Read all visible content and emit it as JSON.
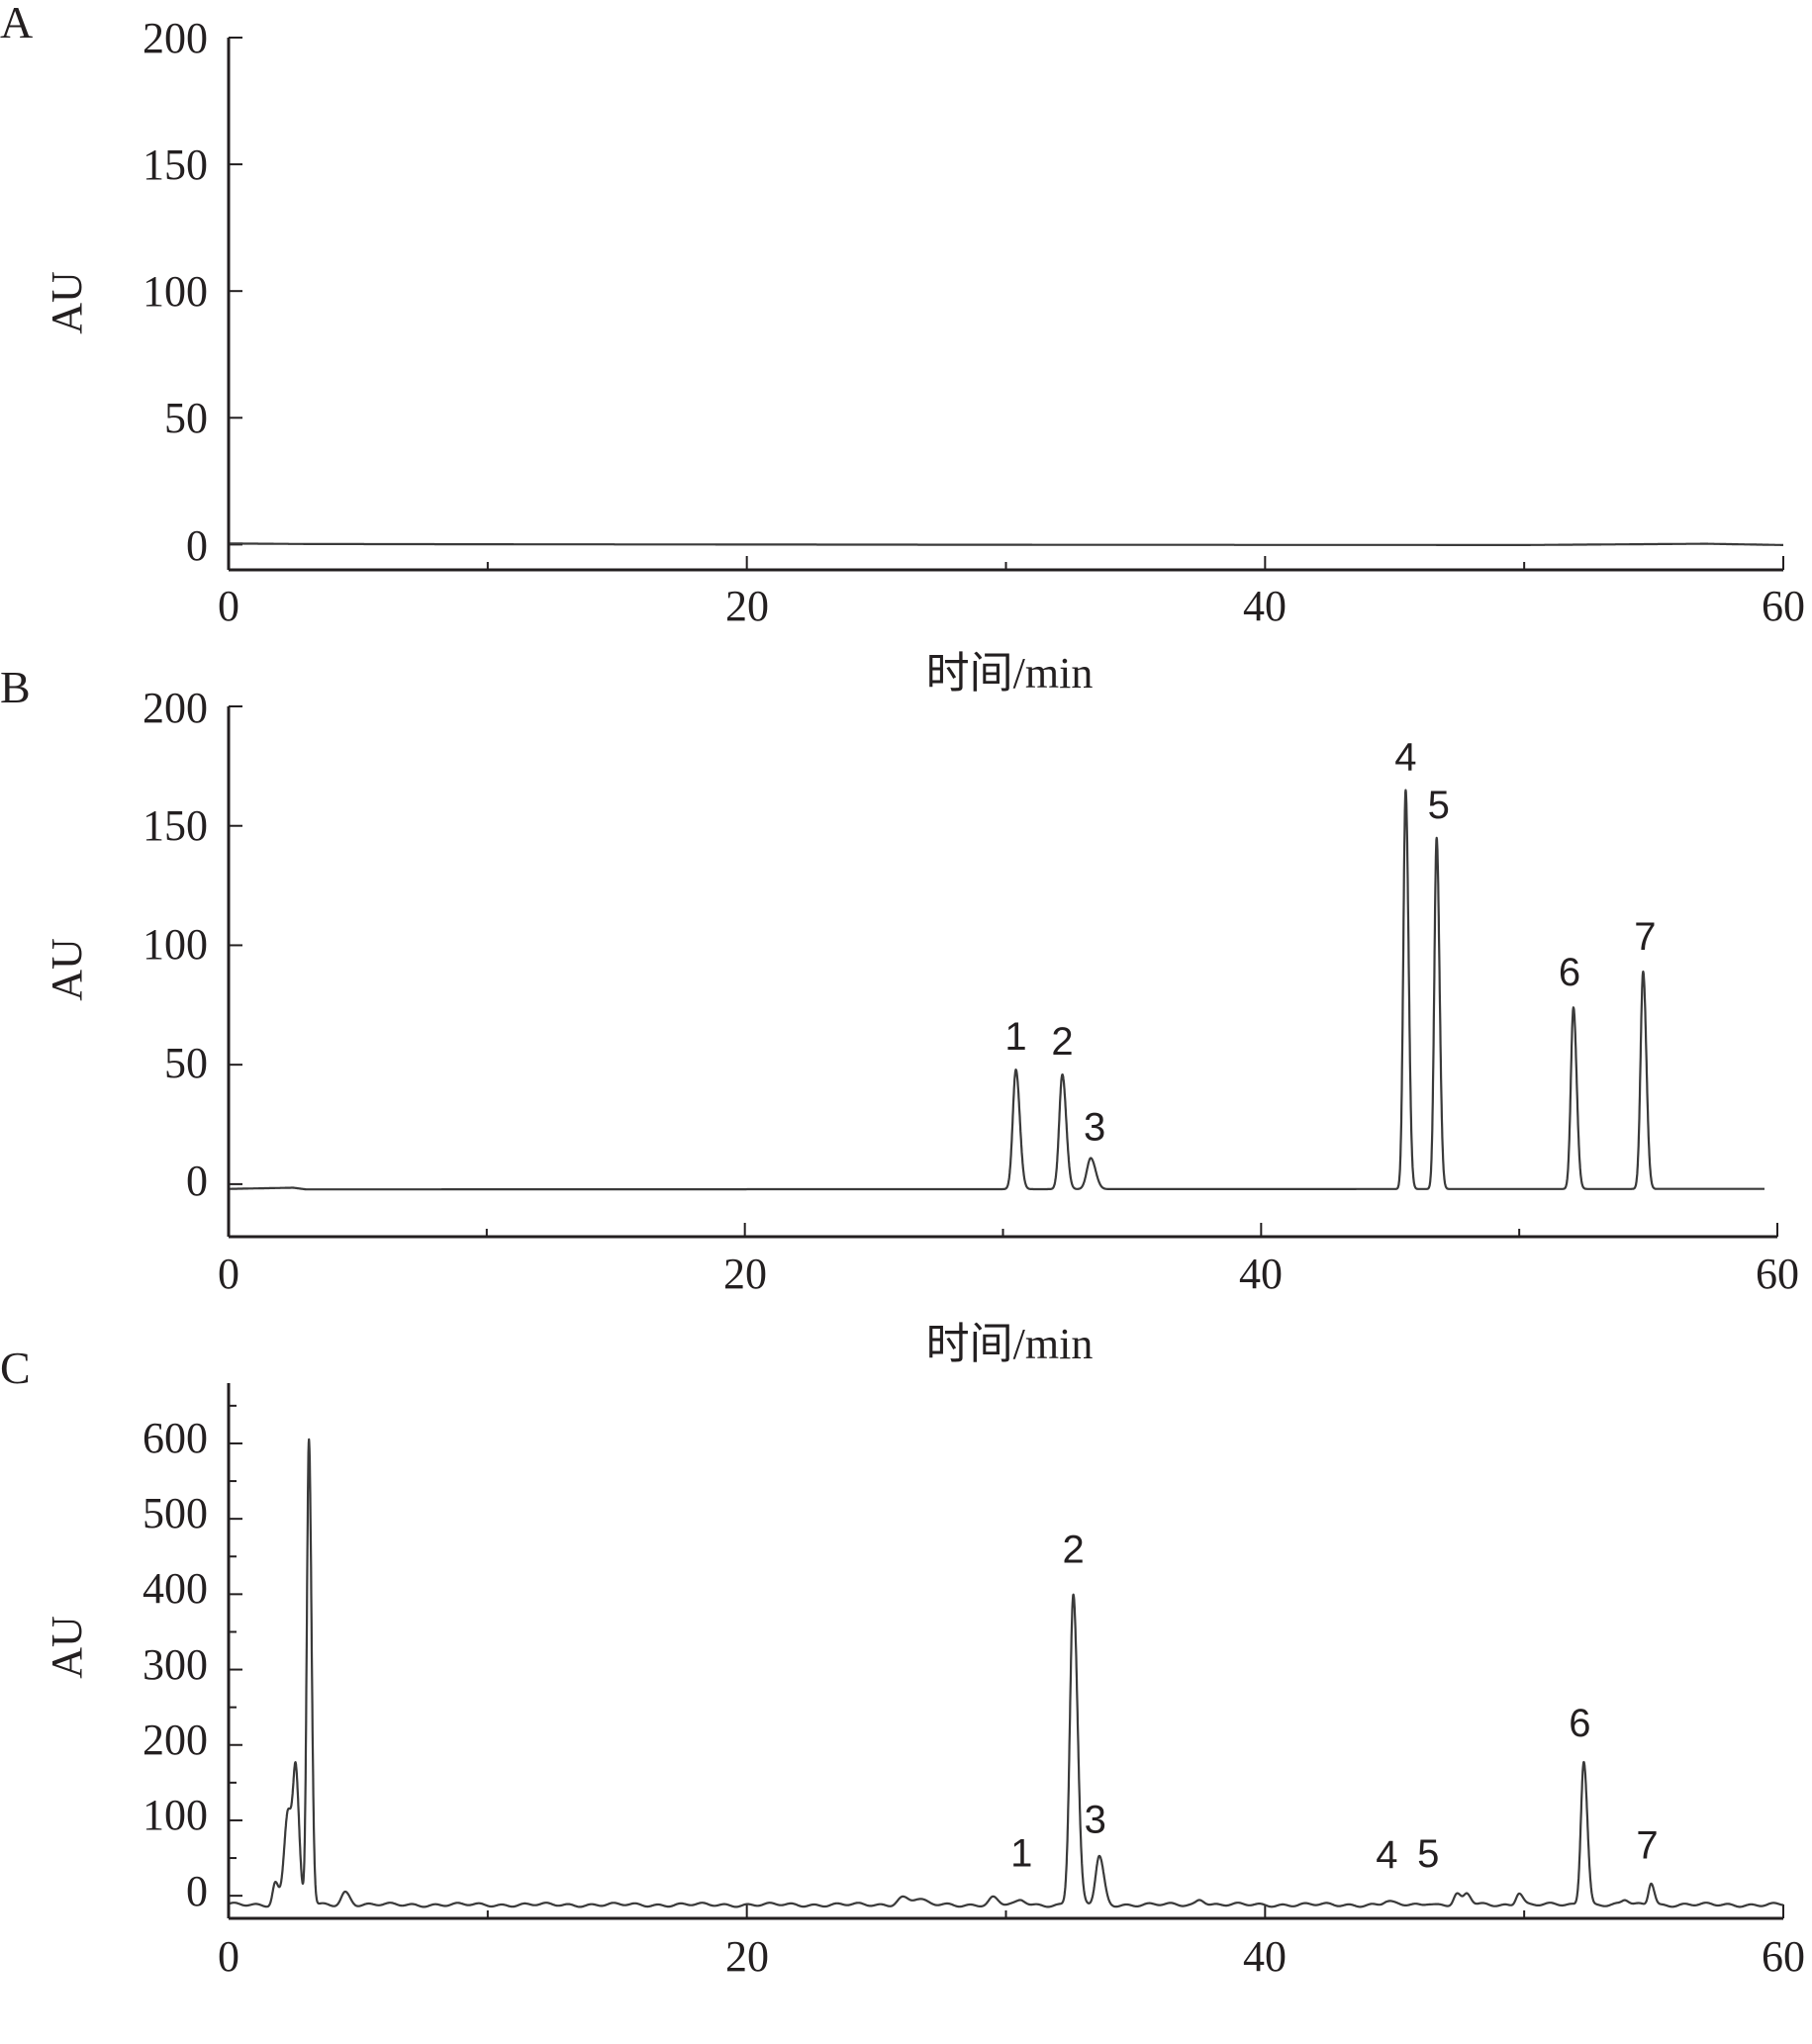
{
  "colors": {
    "axis": "#231f20",
    "trace": "#3a3a3a",
    "background": "#ffffff"
  },
  "chart_data": [
    {
      "type": "line",
      "panel_label": "A",
      "xlabel": "时间/min",
      "ylabel": "AU",
      "xlim": [
        0,
        60
      ],
      "ylim": [
        -10,
        200
      ],
      "x_ticks": [
        "0",
        "20",
        "40",
        "60"
      ],
      "y_ticks": [
        "200",
        "150",
        "100",
        "50",
        "0"
      ],
      "grid": false,
      "legend": "none",
      "baseline": 0,
      "baseline_points": [
        [
          0,
          0.4
        ],
        [
          3,
          0.2
        ],
        [
          10,
          0.1
        ],
        [
          30,
          -0.1
        ],
        [
          50,
          -0.2
        ],
        [
          57,
          0.3
        ],
        [
          60,
          -0.2
        ]
      ],
      "peaks": []
    },
    {
      "type": "line",
      "panel_label": "B",
      "xlabel": "时间/min",
      "ylabel": "AU",
      "xlim": [
        0,
        60
      ],
      "ylim": [
        -22,
        200
      ],
      "x_ticks": [
        "0",
        "20",
        "40",
        "60"
      ],
      "y_ticks": [
        "200",
        "150",
        "100",
        "50",
        "0"
      ],
      "grid": false,
      "legend": "none",
      "baseline": -2,
      "baseline_points": [
        [
          0,
          -2
        ],
        [
          2.5,
          -1.5
        ],
        [
          3,
          -2.2
        ],
        [
          60,
          -2
        ]
      ],
      "peaks": [
        {
          "label": "1",
          "x": 30.5,
          "y": 48,
          "width": 0.12
        },
        {
          "label": "2",
          "x": 32.3,
          "y": 46,
          "width": 0.12
        },
        {
          "label": "3",
          "x": 33.4,
          "y": 11,
          "width": 0.15
        },
        {
          "label": "4",
          "x": 45.6,
          "y": 165,
          "width": 0.09
        },
        {
          "label": "5",
          "x": 46.8,
          "y": 145,
          "width": 0.09
        },
        {
          "label": "6",
          "x": 52.1,
          "y": 74,
          "width": 0.1
        },
        {
          "label": "7",
          "x": 54.8,
          "y": 89,
          "width": 0.1
        }
      ]
    },
    {
      "type": "line",
      "panel_label": "C",
      "xlabel": "",
      "ylabel": "AU",
      "xlim": [
        0,
        60
      ],
      "ylim": [
        -30,
        680
      ],
      "x_ticks": [
        "0",
        "20",
        "40",
        "60"
      ],
      "y_ticks": [
        "600",
        "500",
        "400",
        "300",
        "200",
        "100",
        "0"
      ],
      "grid": false,
      "legend": "none",
      "baseline": -12,
      "baseline_points": [
        [
          0,
          -12
        ],
        [
          60,
          -12
        ]
      ],
      "peaks": [
        {
          "label": "",
          "x": 1.8,
          "y": 18,
          "width": 0.1
        },
        {
          "label": "",
          "x": 2.3,
          "y": 115,
          "width": 0.15
        },
        {
          "label": "",
          "x": 2.6,
          "y": 138,
          "width": 0.1
        },
        {
          "label": "",
          "x": 3.1,
          "y": 605,
          "width": 0.08
        },
        {
          "label": "",
          "x": 4.5,
          "y": 5,
          "width": 0.15
        },
        {
          "label": "",
          "x": 26,
          "y": -2,
          "width": 0.2
        },
        {
          "label": "",
          "x": 26.6,
          "y": -5,
          "width": 0.2
        },
        {
          "label": "",
          "x": 29.5,
          "y": -3,
          "width": 0.15
        },
        {
          "label": "1",
          "x": 30.6,
          "y": -6,
          "width": 0.15
        },
        {
          "label": "2",
          "x": 32.6,
          "y": 400,
          "width": 0.13
        },
        {
          "label": "3",
          "x": 33.6,
          "y": 52,
          "width": 0.14
        },
        {
          "label": "",
          "x": 37.5,
          "y": -4,
          "width": 0.15
        },
        {
          "label": "4",
          "x": 44.7,
          "y": -8,
          "width": 0.15
        },
        {
          "label": "5",
          "x": 46.3,
          "y": -9,
          "width": 0.15
        },
        {
          "label": "",
          "x": 47.4,
          "y": 2,
          "width": 0.12
        },
        {
          "label": "",
          "x": 47.8,
          "y": 2,
          "width": 0.12
        },
        {
          "label": "",
          "x": 49.8,
          "y": 5,
          "width": 0.12
        },
        {
          "label": "6",
          "x": 52.3,
          "y": 180,
          "width": 0.11
        },
        {
          "label": "",
          "x": 53.9,
          "y": -6,
          "width": 0.12
        },
        {
          "label": "7",
          "x": 54.9,
          "y": 18,
          "width": 0.1
        }
      ]
    }
  ]
}
